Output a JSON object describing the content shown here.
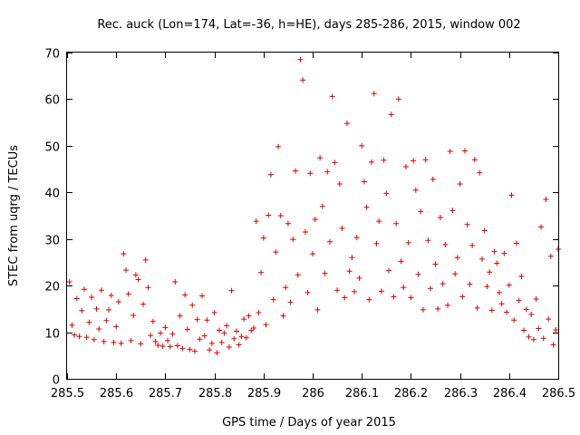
{
  "chart_data": {
    "type": "scatter",
    "title": "Rec. auck (Lon=174, Lat=-36, h=HE), days 285-286, 2015, window 002",
    "xlabel": "GPS time / Days of year 2015",
    "ylabel": "STEC from uqrg / TECUs",
    "xlim": [
      285.5,
      286.5
    ],
    "ylim": [
      0,
      70
    ],
    "x_ticks": [
      "285.5",
      "285.6",
      "285.7",
      "285.8",
      "285.9",
      "286",
      "286.1",
      "286.2",
      "286.3",
      "286.4",
      "286.5"
    ],
    "x_tick_values": [
      285.5,
      285.6,
      285.7,
      285.8,
      285.9,
      286.0,
      286.1,
      286.2,
      286.3,
      286.4,
      286.5
    ],
    "y_ticks": [
      "0",
      "10",
      "20",
      "30",
      "40",
      "50",
      "60",
      "70"
    ],
    "y_tick_values": [
      0,
      10,
      20,
      30,
      40,
      50,
      60,
      70
    ],
    "marker": "plus",
    "color": "#e00000",
    "series": [
      {
        "name": "STEC",
        "points": [
          [
            285.505,
            20.8
          ],
          [
            285.51,
            11.5
          ],
          [
            285.515,
            9.4
          ],
          [
            285.52,
            17.2
          ],
          [
            285.525,
            9.1
          ],
          [
            285.53,
            14.6
          ],
          [
            285.535,
            19.2
          ],
          [
            285.54,
            8.9
          ],
          [
            285.545,
            12.1
          ],
          [
            285.55,
            17.5
          ],
          [
            285.555,
            8.4
          ],
          [
            285.56,
            15.0
          ],
          [
            285.565,
            10.7
          ],
          [
            285.57,
            19.0
          ],
          [
            285.575,
            8.0
          ],
          [
            285.58,
            12.5
          ],
          [
            285.585,
            14.8
          ],
          [
            285.59,
            17.9
          ],
          [
            285.595,
            7.8
          ],
          [
            285.6,
            11.2
          ],
          [
            285.605,
            16.5
          ],
          [
            285.61,
            7.6
          ],
          [
            285.615,
            26.8
          ],
          [
            285.62,
            23.3
          ],
          [
            285.625,
            18.2
          ],
          [
            285.63,
            8.2
          ],
          [
            285.635,
            13.6
          ],
          [
            285.64,
            22.3
          ],
          [
            285.645,
            21.3
          ],
          [
            285.65,
            7.5
          ],
          [
            285.655,
            16.0
          ],
          [
            285.66,
            25.5
          ],
          [
            285.665,
            19.6
          ],
          [
            285.67,
            9.3
          ],
          [
            285.675,
            12.3
          ],
          [
            285.68,
            8.0
          ],
          [
            285.685,
            7.2
          ],
          [
            285.69,
            9.8
          ],
          [
            285.695,
            7.0
          ],
          [
            285.7,
            11.0
          ],
          [
            285.705,
            8.2
          ],
          [
            285.71,
            6.9
          ],
          [
            285.715,
            9.6
          ],
          [
            285.72,
            20.8
          ],
          [
            285.725,
            7.1
          ],
          [
            285.73,
            13.5
          ],
          [
            285.735,
            6.5
          ],
          [
            285.74,
            18.0
          ],
          [
            285.745,
            10.6
          ],
          [
            285.75,
            6.3
          ],
          [
            285.755,
            15.8
          ],
          [
            285.76,
            5.9
          ],
          [
            285.765,
            12.7
          ],
          [
            285.77,
            8.5
          ],
          [
            285.775,
            17.8
          ],
          [
            285.78,
            9.2
          ],
          [
            285.785,
            12.6
          ],
          [
            285.79,
            6.2
          ],
          [
            285.795,
            7.6
          ],
          [
            285.8,
            14.2
          ],
          [
            285.805,
            5.6
          ],
          [
            285.81,
            10.4
          ],
          [
            285.815,
            7.8
          ],
          [
            285.82,
            9.8
          ],
          [
            285.825,
            11.4
          ],
          [
            285.83,
            6.8
          ],
          [
            285.835,
            18.9
          ],
          [
            285.84,
            8.6
          ],
          [
            285.845,
            10.2
          ],
          [
            285.85,
            7.3
          ],
          [
            285.855,
            9.1
          ],
          [
            285.86,
            12.8
          ],
          [
            285.865,
            8.8
          ],
          [
            285.87,
            13.5
          ],
          [
            285.875,
            10.4
          ],
          [
            285.88,
            10.9
          ],
          [
            285.885,
            33.8
          ],
          [
            285.89,
            14.2
          ],
          [
            285.895,
            22.8
          ],
          [
            285.9,
            30.2
          ],
          [
            285.905,
            11.6
          ],
          [
            285.91,
            35.1
          ],
          [
            285.915,
            43.8
          ],
          [
            285.92,
            17.0
          ],
          [
            285.925,
            27.2
          ],
          [
            285.93,
            49.8
          ],
          [
            285.935,
            35.0
          ],
          [
            285.94,
            13.5
          ],
          [
            285.945,
            19.6
          ],
          [
            285.95,
            33.3
          ],
          [
            285.955,
            16.4
          ],
          [
            285.96,
            29.9
          ],
          [
            285.965,
            44.6
          ],
          [
            285.97,
            22.3
          ],
          [
            285.975,
            68.5
          ],
          [
            285.98,
            64.1
          ],
          [
            285.985,
            31.5
          ],
          [
            285.99,
            18.5
          ],
          [
            285.995,
            44.1
          ],
          [
            286.0,
            26.8
          ],
          [
            286.005,
            34.2
          ],
          [
            286.01,
            14.8
          ],
          [
            286.015,
            47.4
          ],
          [
            286.02,
            37.0
          ],
          [
            286.025,
            22.6
          ],
          [
            286.03,
            44.4
          ],
          [
            286.035,
            29.4
          ],
          [
            286.04,
            60.6
          ],
          [
            286.045,
            46.4
          ],
          [
            286.05,
            19.0
          ],
          [
            286.055,
            41.8
          ],
          [
            286.06,
            32.3
          ],
          [
            286.065,
            17.4
          ],
          [
            286.07,
            54.8
          ],
          [
            286.075,
            23.1
          ],
          [
            286.08,
            26.0
          ],
          [
            286.085,
            18.7
          ],
          [
            286.09,
            30.3
          ],
          [
            286.095,
            21.6
          ],
          [
            286.1,
            50.0
          ],
          [
            286.105,
            42.3
          ],
          [
            286.11,
            36.8
          ],
          [
            286.115,
            17.0
          ],
          [
            286.12,
            46.5
          ],
          [
            286.125,
            61.2
          ],
          [
            286.13,
            29.0
          ],
          [
            286.135,
            33.8
          ],
          [
            286.14,
            18.8
          ],
          [
            286.145,
            46.9
          ],
          [
            286.15,
            39.8
          ],
          [
            286.155,
            23.2
          ],
          [
            286.16,
            56.7
          ],
          [
            286.165,
            17.6
          ],
          [
            286.17,
            33.3
          ],
          [
            286.175,
            60.0
          ],
          [
            286.18,
            25.2
          ],
          [
            286.185,
            19.6
          ],
          [
            286.19,
            45.5
          ],
          [
            286.195,
            29.2
          ],
          [
            286.2,
            17.4
          ],
          [
            286.205,
            46.8
          ],
          [
            286.21,
            40.5
          ],
          [
            286.215,
            22.4
          ],
          [
            286.22,
            35.9
          ],
          [
            286.225,
            14.8
          ],
          [
            286.23,
            47.0
          ],
          [
            286.235,
            29.7
          ],
          [
            286.24,
            19.4
          ],
          [
            286.245,
            42.8
          ],
          [
            286.25,
            24.6
          ],
          [
            286.255,
            15.0
          ],
          [
            286.26,
            34.6
          ],
          [
            286.265,
            20.4
          ],
          [
            286.27,
            28.8
          ],
          [
            286.275,
            15.8
          ],
          [
            286.28,
            48.8
          ],
          [
            286.285,
            36.1
          ],
          [
            286.29,
            22.5
          ],
          [
            286.295,
            26.0
          ],
          [
            286.3,
            41.8
          ],
          [
            286.305,
            17.6
          ],
          [
            286.31,
            48.9
          ],
          [
            286.315,
            33.1
          ],
          [
            286.32,
            20.3
          ],
          [
            286.325,
            28.6
          ],
          [
            286.33,
            47.0
          ],
          [
            286.335,
            15.2
          ],
          [
            286.34,
            44.2
          ],
          [
            286.345,
            25.7
          ],
          [
            286.35,
            31.8
          ],
          [
            286.355,
            19.8
          ],
          [
            286.36,
            22.9
          ],
          [
            286.365,
            14.7
          ],
          [
            286.37,
            27.3
          ],
          [
            286.375,
            24.8
          ],
          [
            286.38,
            18.5
          ],
          [
            286.385,
            16.1
          ],
          [
            286.39,
            26.9
          ],
          [
            286.395,
            14.3
          ],
          [
            286.4,
            20.1
          ],
          [
            286.405,
            39.4
          ],
          [
            286.41,
            12.6
          ],
          [
            286.415,
            29.1
          ],
          [
            286.42,
            16.8
          ],
          [
            286.425,
            22.0
          ],
          [
            286.43,
            10.4
          ],
          [
            286.435,
            14.9
          ],
          [
            286.44,
            9.0
          ],
          [
            286.445,
            13.8
          ],
          [
            286.45,
            8.4
          ],
          [
            286.455,
            17.1
          ],
          [
            286.46,
            10.8
          ],
          [
            286.465,
            32.6
          ],
          [
            286.47,
            8.7
          ],
          [
            286.475,
            38.5
          ],
          [
            286.48,
            12.8
          ],
          [
            286.485,
            26.3
          ],
          [
            286.49,
            7.3
          ],
          [
            286.495,
            10.5
          ],
          [
            286.5,
            27.8
          ]
        ]
      }
    ]
  }
}
